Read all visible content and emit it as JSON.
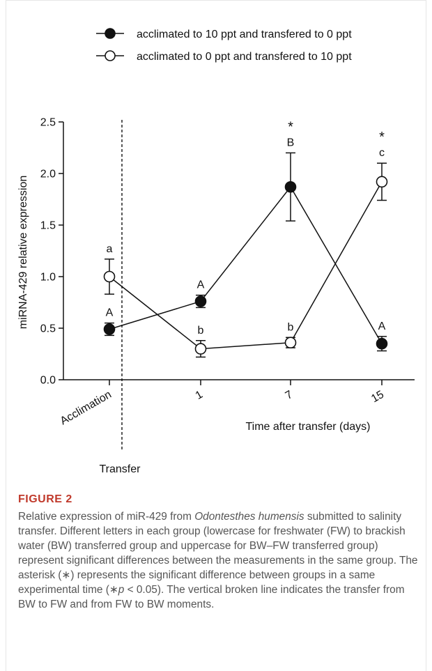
{
  "chart_data": {
    "type": "line",
    "ylabel": "miRNA-429 relative expression",
    "xlabel": "Time after transfer (days)",
    "ylim": [
      0,
      2.5
    ],
    "yticks": [
      "0.0",
      "0.5",
      "1.0",
      "1.5",
      "2.0",
      "2.5"
    ],
    "categories": [
      "Acclimation",
      "1",
      "7",
      "15"
    ],
    "divider_label": "Transfer",
    "legend_position": "top",
    "grid": false,
    "series": [
      {
        "name": "acclimated to 10 ppt and transfered to 0 ppt",
        "marker": "filled-circle",
        "values": [
          0.49,
          0.76,
          1.87,
          0.35
        ],
        "errors": [
          0.06,
          0.06,
          0.33,
          0.07
        ],
        "letters": [
          "A",
          "A",
          "B",
          "A"
        ],
        "asterisks": [
          false,
          false,
          true,
          false
        ]
      },
      {
        "name": "acclimated to 0 ppt and transfered to 10 ppt",
        "marker": "open-circle",
        "values": [
          1.0,
          0.3,
          0.36,
          1.92
        ],
        "errors": [
          0.17,
          0.08,
          0.05,
          0.18
        ],
        "letters": [
          "a",
          "b",
          "b",
          "c"
        ],
        "asterisks": [
          false,
          false,
          false,
          true
        ]
      }
    ]
  },
  "caption": {
    "label": "FIGURE 2",
    "text_1": "Relative expression of miR-429 from ",
    "species": "Odontesthes humensis",
    "text_2": " submitted to salinity transfer. Different letters in each group (lowercase for freshwater (FW) to brackish water (BW) transferred group and uppercase for BW–FW transferred group) represent significant differences between the measurements in the same group. The asterisk (∗) represents the significant difference between groups in a same experimental time (∗",
    "p_symbol": "p",
    "text_3": " < 0.05). The vertical broken line indicates the transfer from BW to FW and from FW to BW moments."
  }
}
